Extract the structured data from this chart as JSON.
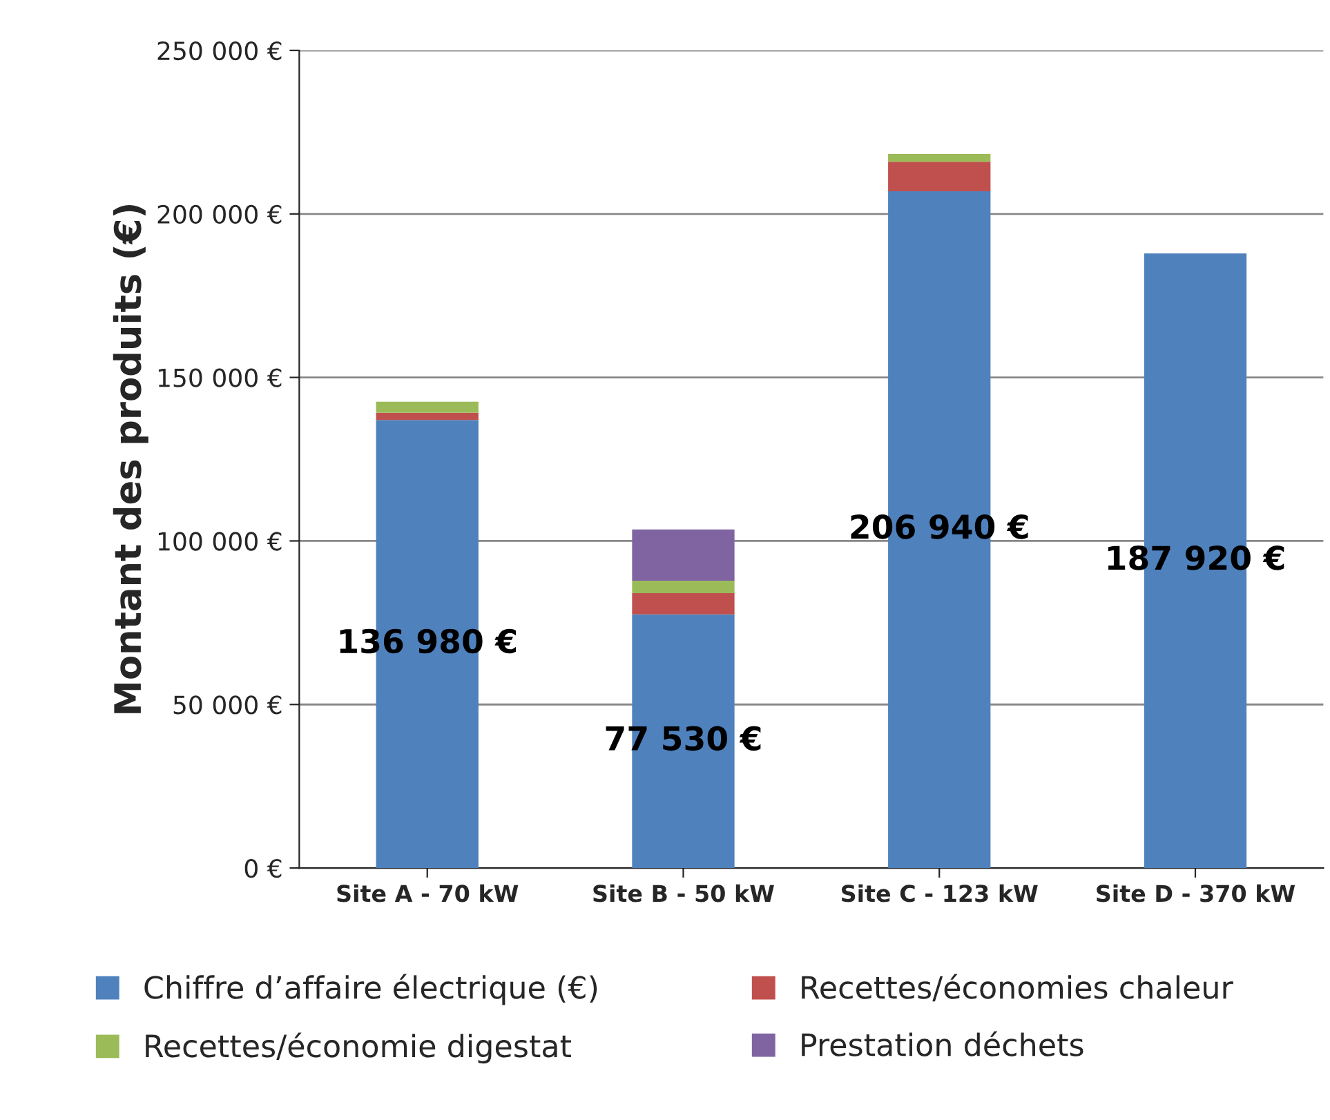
{
  "chart_data": {
    "type": "bar",
    "stacked": true,
    "ylabel": "Montant des produits (€)",
    "categories": [
      "Site A - 70 kW",
      "Site B - 50 kW",
      "Site C - 123 kW",
      "Site D - 370 kW"
    ],
    "series": [
      {
        "name": "Chiffre d’affaire électrique (€)",
        "color": "#4f81bd",
        "values": [
          136980,
          77530,
          206940,
          187920
        ],
        "value_labels": [
          "136 980 €",
          "77 530 €",
          "206 940 €",
          "187 920 €"
        ]
      },
      {
        "name": "Recettes/économies chaleur",
        "color": "#c0504d",
        "values": [
          2200,
          6500,
          9000,
          null
        ]
      },
      {
        "name": "Recettes/économie digestat",
        "color": "#9bbb59",
        "values": [
          3400,
          3800,
          2400,
          null
        ]
      },
      {
        "name": "Prestation déchets",
        "color": "#8064a2",
        "values": [
          null,
          15700,
          null,
          null
        ]
      }
    ],
    "ylim": [
      0,
      250000
    ],
    "yticks": [
      {
        "value": 0,
        "label": "0 €"
      },
      {
        "value": 50000,
        "label": "50 000 €"
      },
      {
        "value": 100000,
        "label": "100 000 €"
      },
      {
        "value": 150000,
        "label": "150 000 €"
      },
      {
        "value": 200000,
        "label": "200 000 €"
      },
      {
        "value": 250000,
        "label": "250 000 €"
      }
    ],
    "grid": "y",
    "legend": "bottom"
  }
}
